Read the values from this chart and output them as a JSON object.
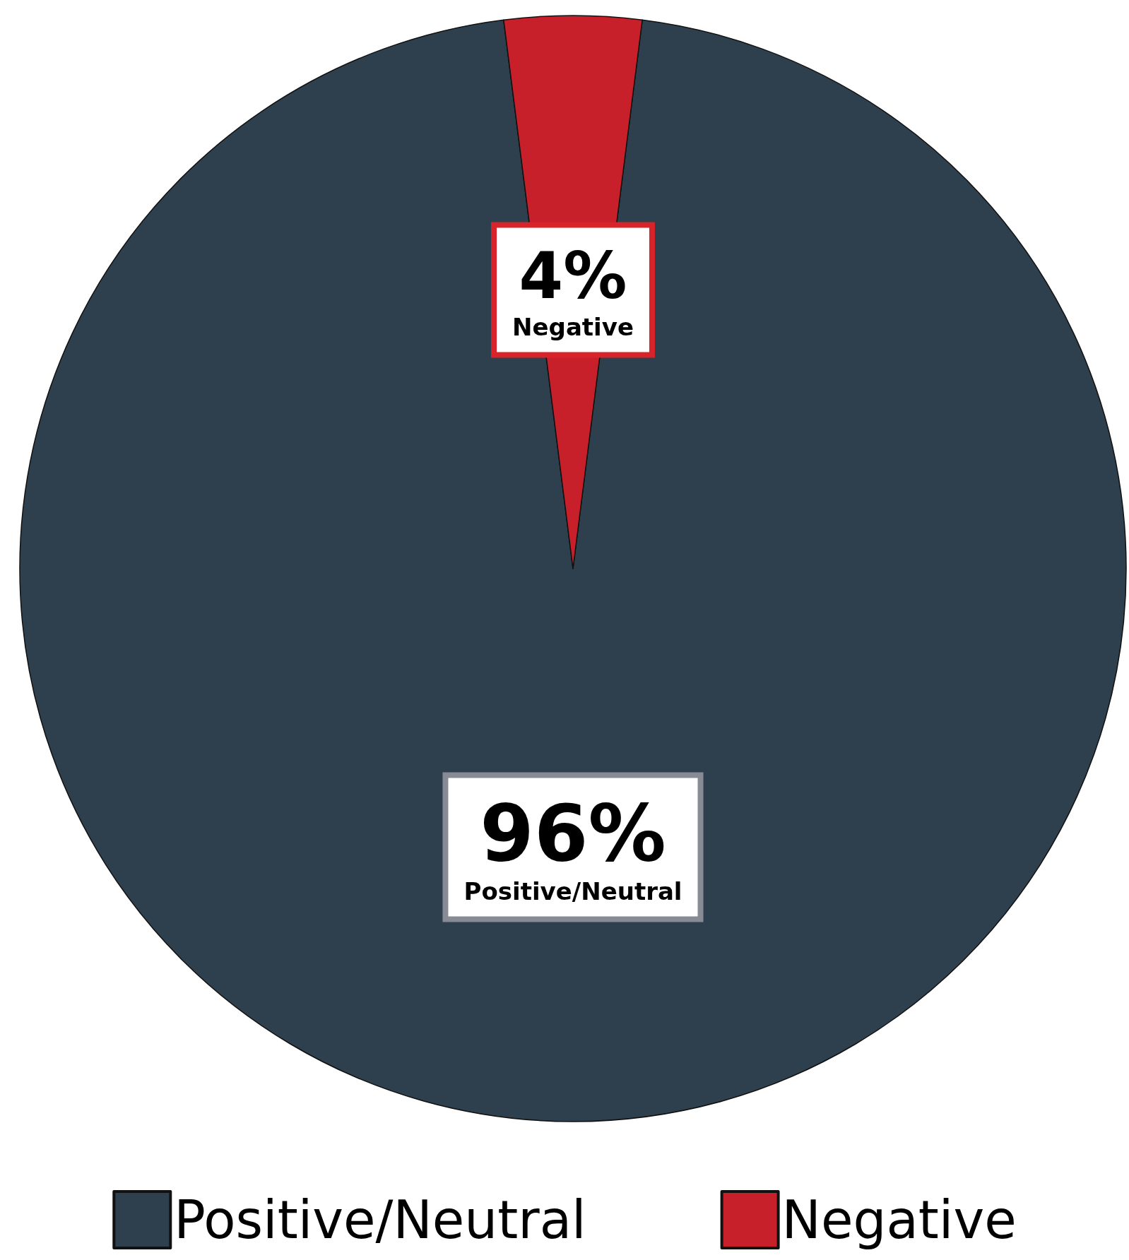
{
  "chart_data": {
    "type": "pie",
    "categories": [
      "Positive/Neutral",
      "Negative"
    ],
    "values": [
      96,
      4
    ],
    "colors": [
      "#2e404d",
      "#c8202a"
    ],
    "value_labels": [
      "96%",
      "4%"
    ],
    "legend": "bottom"
  }
}
